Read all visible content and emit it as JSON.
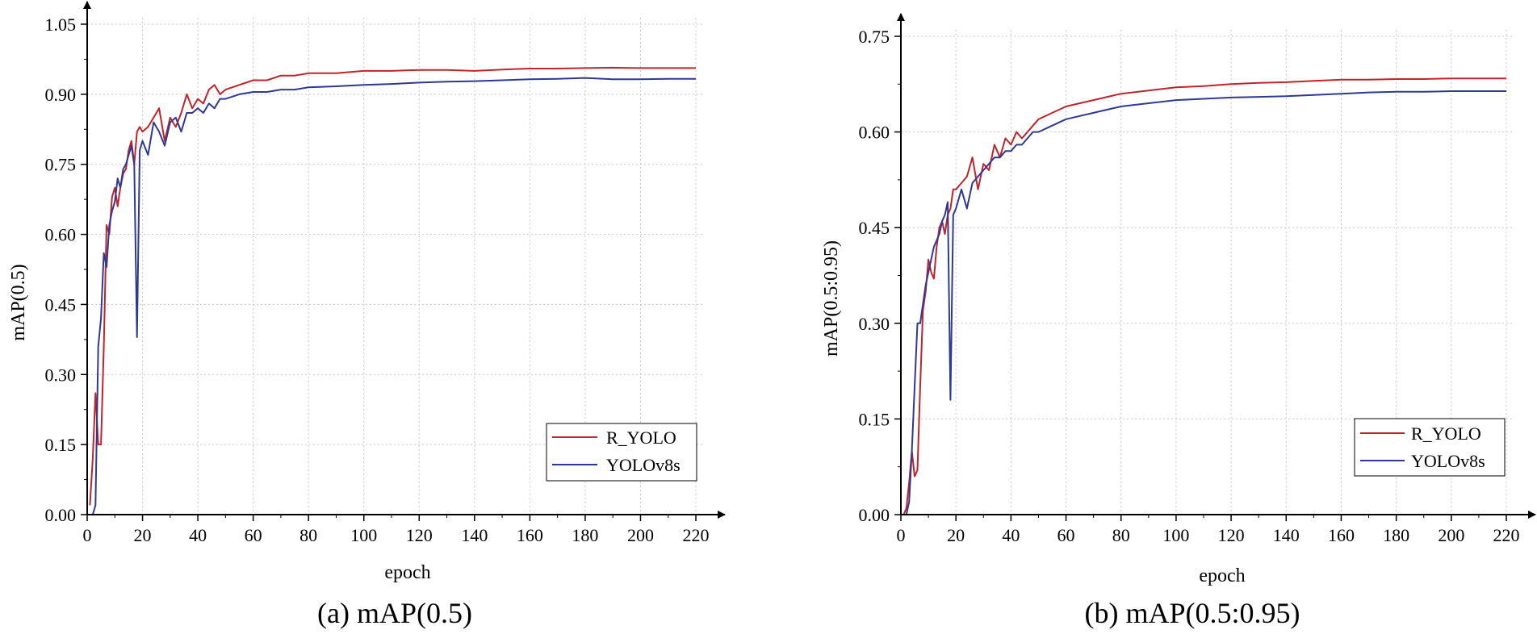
{
  "chart_data": [
    {
      "type": "line",
      "caption": "(a) mAP(0.5)",
      "xlabel": "epoch",
      "ylabel": "mAP(0.5)",
      "xlim": [
        0,
        220
      ],
      "ylim": [
        0,
        1.05
      ],
      "xticks": [
        0,
        20,
        40,
        60,
        80,
        100,
        120,
        140,
        160,
        180,
        200,
        220
      ],
      "yticks": [
        0.0,
        0.15,
        0.3,
        0.45,
        0.6,
        0.75,
        0.9,
        1.05
      ],
      "ytick_labels": [
        "0.00",
        "0.15",
        "0.30",
        "0.45",
        "0.60",
        "0.75",
        "0.90",
        "1.05"
      ],
      "grid": true,
      "legend_position": "bottom-right",
      "series": [
        {
          "name": "R_YOLO",
          "color": "#c0232a",
          "x": [
            1,
            2,
            3,
            4,
            5,
            6,
            7,
            8,
            9,
            10,
            11,
            12,
            13,
            14,
            15,
            16,
            17,
            18,
            19,
            20,
            22,
            24,
            26,
            28,
            30,
            32,
            34,
            36,
            38,
            40,
            42,
            44,
            46,
            48,
            50,
            55,
            60,
            65,
            70,
            75,
            80,
            90,
            100,
            110,
            120,
            130,
            140,
            150,
            160,
            170,
            180,
            190,
            200,
            210,
            220
          ],
          "y": [
            0.02,
            0.12,
            0.26,
            0.15,
            0.15,
            0.36,
            0.62,
            0.6,
            0.68,
            0.7,
            0.66,
            0.7,
            0.73,
            0.74,
            0.78,
            0.8,
            0.75,
            0.82,
            0.83,
            0.82,
            0.83,
            0.85,
            0.87,
            0.8,
            0.85,
            0.83,
            0.86,
            0.9,
            0.87,
            0.89,
            0.88,
            0.91,
            0.92,
            0.9,
            0.91,
            0.92,
            0.93,
            0.93,
            0.94,
            0.94,
            0.945,
            0.945,
            0.95,
            0.95,
            0.952,
            0.952,
            0.95,
            0.953,
            0.955,
            0.955,
            0.956,
            0.957,
            0.956,
            0.956,
            0.956
          ]
        },
        {
          "name": "YOLOv8s",
          "color": "#2e3a92",
          "x": [
            1,
            2,
            3,
            4,
            5,
            6,
            7,
            8,
            9,
            10,
            11,
            12,
            13,
            14,
            15,
            16,
            17,
            18,
            19,
            20,
            22,
            24,
            26,
            28,
            30,
            32,
            34,
            36,
            38,
            40,
            42,
            44,
            46,
            48,
            50,
            55,
            60,
            65,
            70,
            75,
            80,
            90,
            100,
            110,
            120,
            130,
            140,
            150,
            160,
            170,
            180,
            190,
            200,
            210,
            220
          ],
          "y": [
            0.0,
            0.0,
            0.02,
            0.36,
            0.42,
            0.56,
            0.53,
            0.62,
            0.65,
            0.67,
            0.72,
            0.7,
            0.74,
            0.75,
            0.77,
            0.79,
            0.75,
            0.38,
            0.78,
            0.8,
            0.77,
            0.84,
            0.82,
            0.79,
            0.84,
            0.85,
            0.82,
            0.86,
            0.86,
            0.87,
            0.86,
            0.88,
            0.87,
            0.89,
            0.89,
            0.9,
            0.905,
            0.905,
            0.91,
            0.91,
            0.915,
            0.917,
            0.92,
            0.922,
            0.925,
            0.927,
            0.928,
            0.93,
            0.932,
            0.933,
            0.935,
            0.932,
            0.932,
            0.933,
            0.933
          ]
        }
      ]
    },
    {
      "type": "line",
      "caption": "(b) mAP(0.5:0.95)",
      "xlabel": "epoch",
      "ylabel": "mAP(0.5:0.95)",
      "xlim": [
        0,
        220
      ],
      "ylim": [
        0,
        0.75
      ],
      "xticks": [
        0,
        20,
        40,
        60,
        80,
        100,
        120,
        140,
        160,
        180,
        200,
        220
      ],
      "yticks": [
        0.0,
        0.15,
        0.3,
        0.45,
        0.6,
        0.75
      ],
      "ytick_labels": [
        "0.00",
        "0.15",
        "0.30",
        "0.45",
        "0.60",
        "0.75"
      ],
      "grid": true,
      "legend_position": "bottom-right",
      "series": [
        {
          "name": "R_YOLO",
          "color": "#c0232a",
          "x": [
            1,
            2,
            3,
            4,
            5,
            6,
            7,
            8,
            9,
            10,
            11,
            12,
            13,
            14,
            15,
            16,
            17,
            18,
            19,
            20,
            22,
            24,
            26,
            28,
            30,
            32,
            34,
            36,
            38,
            40,
            42,
            44,
            46,
            48,
            50,
            55,
            60,
            65,
            70,
            75,
            80,
            90,
            100,
            110,
            120,
            130,
            140,
            150,
            160,
            170,
            180,
            190,
            200,
            210,
            220
          ],
          "y": [
            0.0,
            0.01,
            0.05,
            0.1,
            0.06,
            0.07,
            0.2,
            0.32,
            0.35,
            0.4,
            0.38,
            0.37,
            0.42,
            0.45,
            0.46,
            0.44,
            0.47,
            0.48,
            0.51,
            0.51,
            0.52,
            0.53,
            0.56,
            0.51,
            0.55,
            0.54,
            0.58,
            0.56,
            0.59,
            0.58,
            0.6,
            0.59,
            0.6,
            0.61,
            0.62,
            0.63,
            0.64,
            0.645,
            0.65,
            0.655,
            0.66,
            0.665,
            0.67,
            0.672,
            0.675,
            0.677,
            0.678,
            0.68,
            0.682,
            0.682,
            0.683,
            0.683,
            0.684,
            0.684,
            0.684
          ]
        },
        {
          "name": "YOLOv8s",
          "color": "#2e3a92",
          "x": [
            1,
            2,
            3,
            4,
            5,
            6,
            7,
            8,
            9,
            10,
            11,
            12,
            13,
            14,
            15,
            16,
            17,
            18,
            19,
            20,
            22,
            24,
            26,
            28,
            30,
            32,
            34,
            36,
            38,
            40,
            42,
            44,
            46,
            48,
            50,
            55,
            60,
            65,
            70,
            75,
            80,
            90,
            100,
            110,
            120,
            130,
            140,
            150,
            160,
            170,
            180,
            190,
            200,
            210,
            220
          ],
          "y": [
            0.0,
            0.0,
            0.02,
            0.1,
            0.2,
            0.3,
            0.3,
            0.33,
            0.36,
            0.38,
            0.4,
            0.42,
            0.43,
            0.44,
            0.46,
            0.47,
            0.49,
            0.18,
            0.47,
            0.48,
            0.51,
            0.48,
            0.52,
            0.53,
            0.54,
            0.55,
            0.56,
            0.56,
            0.57,
            0.57,
            0.58,
            0.58,
            0.59,
            0.6,
            0.6,
            0.61,
            0.62,
            0.625,
            0.63,
            0.635,
            0.64,
            0.645,
            0.65,
            0.652,
            0.654,
            0.655,
            0.656,
            0.658,
            0.66,
            0.662,
            0.663,
            0.663,
            0.664,
            0.664,
            0.664
          ]
        }
      ]
    }
  ]
}
